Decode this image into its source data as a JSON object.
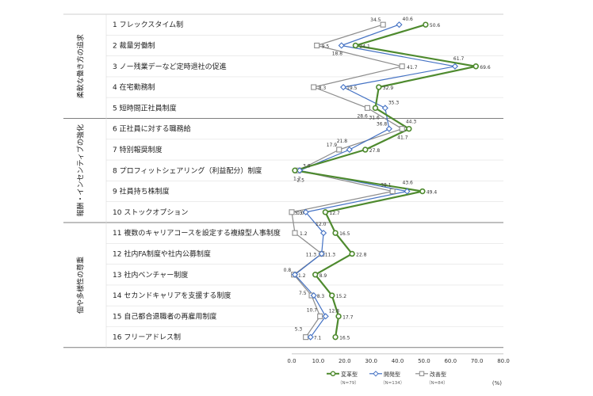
{
  "chart_data": {
    "type": "line",
    "orientation": "horizontal",
    "unit": "(%)",
    "xlim": [
      0,
      80
    ],
    "xticks": [
      "0.0",
      "10.0",
      "20.0",
      "30.0",
      "40.0",
      "50.0",
      "60.0",
      "70.0",
      "80.0"
    ],
    "groups": [
      {
        "label": "柔軟な働き方の追求",
        "start": 0,
        "end": 4
      },
      {
        "label": "報酬・インセンティブの強化",
        "start": 5,
        "end": 9
      },
      {
        "label": "個や多様性の尊重",
        "start": 10,
        "end": 15
      }
    ],
    "categories": [
      "1 フレックスタイム制",
      "2 裁量労働制",
      "3 ノー残業デーなど定時退社の促進",
      "4 在宅勤務制",
      "5 短時間正社員制度",
      "6 正社員に対する職務給",
      "7 特別報奨制度",
      "8 プロフィットシェアリング（利益配分）制度",
      "9 社員持ち株制度",
      "10 ストックオプション",
      "11 複数のキャリアコースを設定する複線型人事制度",
      "12 社内FA制度や社内公募制度",
      "13 社内ベンチャー制度",
      "14 セカンドキャリアを支援する制度",
      "15 自己都合退職者の再雇用制度",
      "16 フリーアドレス制"
    ],
    "series": [
      {
        "name": "変革型",
        "n": "（N=79）",
        "color": "#4e8a2e",
        "marker": "circle",
        "values": [
          50.6,
          24.1,
          69.6,
          32.9,
          31.6,
          44.3,
          27.8,
          1.2,
          49.4,
          12.7,
          16.5,
          22.8,
          8.9,
          15.2,
          17.7,
          16.5
        ],
        "labels": [
          "50.6",
          "24.1",
          "69.6",
          "32.9",
          "31.6",
          "44.3",
          "27.8",
          "1.2",
          "49.4",
          "12.7",
          "16.5",
          "22.8",
          "8.9",
          "15.2",
          "17.7",
          "16.5"
        ]
      },
      {
        "name": "開発型",
        "n": "（N=134）",
        "color": "#4472c4",
        "marker": "diamond",
        "values": [
          40.6,
          18.8,
          61.7,
          19.5,
          35.3,
          36.8,
          21.8,
          3.0,
          43.6,
          5.3,
          12.0,
          11.3,
          1.2,
          8.3,
          12.8,
          7.1
        ],
        "labels": [
          "40.6",
          "18.8",
          "61.7",
          "19.5",
          "35.3",
          "36.8",
          "21.8",
          "3.0",
          "43.6",
          "5.3",
          "12.0",
          "11.3",
          "1.2",
          "8.3",
          "12.8",
          "7.1"
        ]
      },
      {
        "name": "改善型",
        "n": "（N=84）",
        "color": "#8c8c8c",
        "marker": "square",
        "values": [
          34.5,
          9.5,
          41.7,
          8.3,
          28.6,
          41.7,
          17.9,
          2.5,
          38.1,
          0.0,
          1.2,
          11.3,
          0.8,
          7.5,
          10.7,
          5.3
        ],
        "labels": [
          "34.5",
          "9.5",
          "41.7",
          "8.3",
          "28.6",
          "41.7",
          "17.9",
          "2.5",
          "38.1",
          "0.0",
          "1.2",
          "11.3",
          "0.8",
          "7.5",
          "10.7",
          "5.3"
        ]
      }
    ]
  }
}
